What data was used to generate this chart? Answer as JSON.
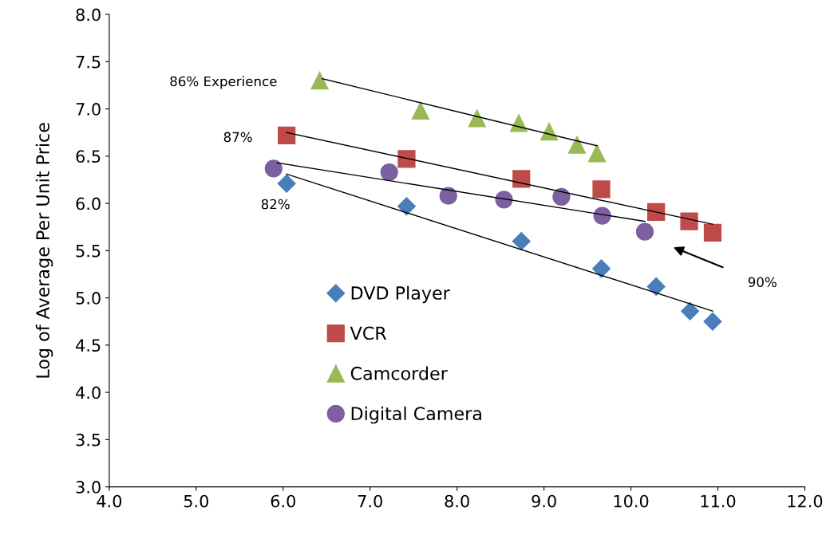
{
  "chart_data": {
    "type": "scatter",
    "ylabel": "Log of Average Per Unit Price",
    "xlim": [
      4.0,
      12.0
    ],
    "xticks": [
      {
        "value": 4,
        "label": "4.0"
      },
      {
        "value": 5,
        "label": "5.0"
      },
      {
        "value": 6,
        "label": "6.0"
      },
      {
        "value": 7,
        "label": "7.0"
      },
      {
        "value": 8,
        "label": "8.0"
      },
      {
        "value": 9,
        "label": "9.0"
      },
      {
        "value": 10,
        "label": "10.0"
      },
      {
        "value": 11,
        "label": "11.0"
      },
      {
        "value": 12,
        "label": "12.0"
      }
    ],
    "ylim": [
      3.0,
      8.0
    ],
    "yticks": [
      {
        "value": 3,
        "label": "3.0"
      },
      {
        "value": 3.5,
        "label": "3.5"
      },
      {
        "value": 4,
        "label": "4.0"
      },
      {
        "value": 4.5,
        "label": "4.5"
      },
      {
        "value": 5,
        "label": "5.0"
      },
      {
        "value": 5.5,
        "label": "5.5"
      },
      {
        "value": 6,
        "label": "6.0"
      },
      {
        "value": 6.5,
        "label": "6.5"
      },
      {
        "value": 7,
        "label": "7.0"
      },
      {
        "value": 7.5,
        "label": "7.5"
      },
      {
        "value": 8,
        "label": "8.0"
      }
    ],
    "grid": false,
    "legend": "bottom",
    "series": [
      {
        "name": "DVD Player",
        "marker": "diamond",
        "color": "#4a7ebb",
        "x": [
          6.04,
          7.42,
          8.74,
          9.66,
          10.29,
          10.68,
          10.94
        ],
        "values": [
          6.21,
          5.97,
          5.6,
          5.31,
          5.12,
          4.86,
          4.75
        ]
      },
      {
        "name": "VCR",
        "marker": "square",
        "color": "#be4b48",
        "x": [
          6.04,
          7.42,
          8.74,
          9.66,
          10.29,
          10.67,
          10.94
        ],
        "values": [
          6.72,
          6.47,
          6.26,
          6.15,
          5.91,
          5.81,
          5.69
        ]
      },
      {
        "name": "Camcorder",
        "marker": "triangle",
        "color": "#98b954",
        "x": [
          6.42,
          7.58,
          8.23,
          8.71,
          9.06,
          9.38,
          9.61
        ],
        "values": [
          7.3,
          6.98,
          6.9,
          6.85,
          6.76,
          6.62,
          6.53
        ]
      },
      {
        "name": "Digital Camera",
        "marker": "circle",
        "color": "#7d60a0",
        "x": [
          5.89,
          7.22,
          7.9,
          8.54,
          9.2,
          9.67,
          10.16
        ],
        "values": [
          6.37,
          6.33,
          6.08,
          6.04,
          6.07,
          5.87,
          5.7
        ]
      },
      {
        "type": "line",
        "color": "#000000",
        "x": [
          6.04,
          10.94
        ],
        "values": [
          6.31,
          4.86
        ]
      },
      {
        "type": "line",
        "color": "#000000",
        "x": [
          6.04,
          10.94
        ],
        "values": [
          6.75,
          5.78
        ]
      },
      {
        "type": "line",
        "color": "#000000",
        "x": [
          6.45,
          9.61
        ],
        "values": [
          7.32,
          6.61
        ]
      },
      {
        "type": "line",
        "color": "#000000",
        "x": [
          5.93,
          10.16
        ],
        "values": [
          6.43,
          5.81
        ]
      }
    ],
    "annotations": [
      "86% Experience",
      "87%",
      "82%",
      "90%"
    ]
  }
}
